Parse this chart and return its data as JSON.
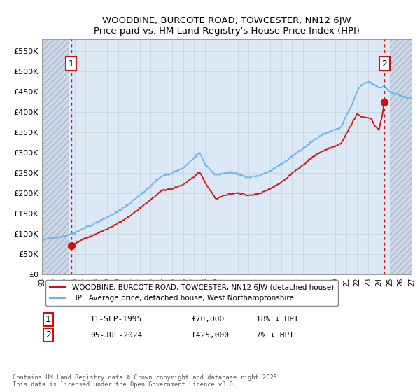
{
  "title1": "WOODBINE, BURCOTE ROAD, TOWCESTER, NN12 6JW",
  "title2": "Price paid vs. HM Land Registry's House Price Index (HPI)",
  "ylim": [
    0,
    580000
  ],
  "yticks": [
    0,
    50000,
    100000,
    150000,
    200000,
    250000,
    300000,
    350000,
    400000,
    450000,
    500000,
    550000
  ],
  "ytick_labels": [
    "£0",
    "£50K",
    "£100K",
    "£150K",
    "£200K",
    "£250K",
    "£300K",
    "£350K",
    "£400K",
    "£450K",
    "£500K",
    "£550K"
  ],
  "xmin": 1993.0,
  "xmax": 2027.0,
  "xtick_years": [
    1993,
    1994,
    1995,
    1996,
    1997,
    1998,
    1999,
    2000,
    2001,
    2002,
    2003,
    2004,
    2005,
    2006,
    2007,
    2008,
    2009,
    2010,
    2011,
    2012,
    2013,
    2014,
    2015,
    2016,
    2017,
    2018,
    2019,
    2020,
    2021,
    2022,
    2023,
    2024,
    2025,
    2026,
    2027
  ],
  "sale1_x": 1995.7,
  "sale1_y": 70000,
  "sale2_x": 2024.5,
  "sale2_y": 425000,
  "hpi_color": "#6ab4e8",
  "price_color": "#cc1111",
  "grid_color": "#c8d4e0",
  "bg_color": "#dce8f4",
  "hatch_bg": "#ccd8e8",
  "legend_label1": "WOODBINE, BURCOTE ROAD, TOWCESTER, NN12 6JW (detached house)",
  "legend_label2": "HPI: Average price, detached house, West Northamptonshire",
  "annotation1_date": "11-SEP-1995",
  "annotation1_price": "£70,000",
  "annotation1_hpi": "18% ↓ HPI",
  "annotation2_date": "05-JUL-2024",
  "annotation2_price": "£425,000",
  "annotation2_hpi": "7% ↓ HPI",
  "footer": "Contains HM Land Registry data © Crown copyright and database right 2025.\nThis data is licensed under the Open Government Licence v3.0.",
  "hatch_left_end": 1995.5,
  "hatch_right_start": 2025.0
}
